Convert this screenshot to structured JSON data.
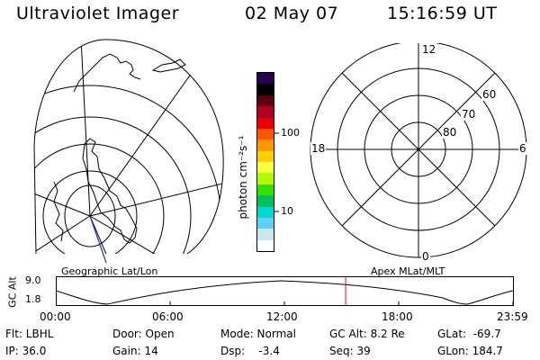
{
  "header": {
    "title": "Ultraviolet Imager",
    "date": "02 May 07",
    "time": "15:16:59 UT"
  },
  "left_panel": {
    "caption": "Geographic Lat/Lon",
    "description_icon": "globe-coastline-map"
  },
  "colorbar": {
    "unit_label": "photon cm⁻²s⁻¹",
    "ticks": [
      "100",
      "10"
    ],
    "colors": [
      "#2a004a",
      "#000000",
      "#5a0010",
      "#b00020",
      "#e60000",
      "#ff5500",
      "#ff9900",
      "#ffd000",
      "#ffff40",
      "#b0ff00",
      "#30e000",
      "#00c060",
      "#00d8d0",
      "#60d0ff",
      "#c8e8f0",
      "#ffffff"
    ]
  },
  "right_panel": {
    "caption": "Apex MLat/MLT",
    "mlt_labels": {
      "top": "12",
      "left": "18",
      "right": "6",
      "bottom": "0"
    },
    "mlat_labels": [
      "60",
      "70",
      "80"
    ]
  },
  "gc_plot": {
    "ylabel": "GC Alt",
    "yticks": [
      "9.0",
      "1.8"
    ],
    "xticks": [
      "00:00",
      "06:00",
      "12:00",
      "18:00",
      "23:59"
    ],
    "marker_color": "#ff0000"
  },
  "status": {
    "flt": "Flt: LBHL",
    "ip": "IP: 36.0",
    "door": "Door: Open",
    "gain": "Gain: 14",
    "mode": "Mode: Normal",
    "dsp": "Dsp:    -3.4",
    "gc_alt": "GC Alt: 8.2 Re",
    "seq": "Seq: 39",
    "glat": "GLat:  -69.7",
    "glon": "GLon: 184.7"
  }
}
